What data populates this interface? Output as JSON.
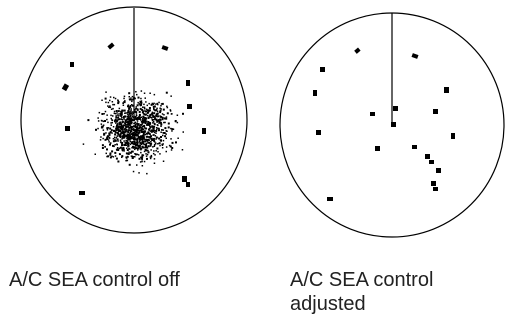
{
  "colors": {
    "ink": "#000000",
    "background": "#ffffff",
    "caption": "#222222"
  },
  "panels": [
    {
      "id": "left",
      "caption": "A/C SEA control off",
      "sea_clutter": true
    },
    {
      "id": "right",
      "caption": "A/C SEA control adjusted",
      "sea_clutter": false
    }
  ]
}
